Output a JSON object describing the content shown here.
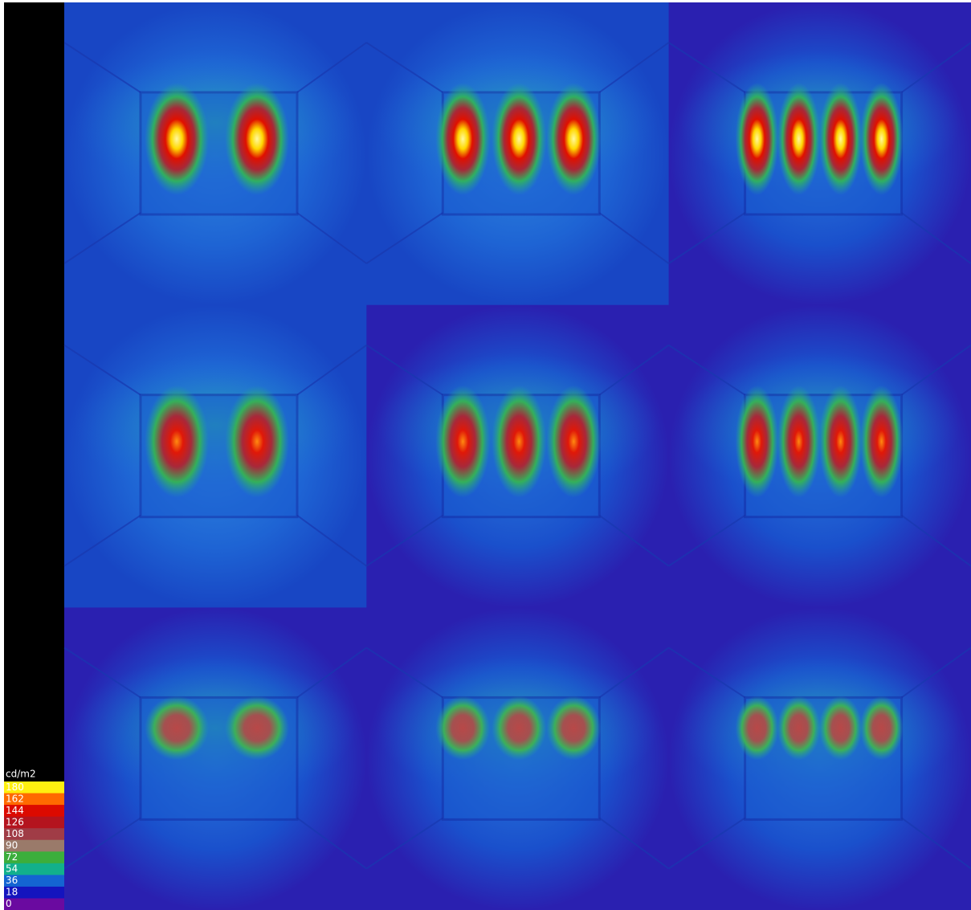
{
  "legend": {
    "unit": "cd/m2",
    "levels": [
      {
        "label": "180",
        "color": "#ffef10"
      },
      {
        "label": "162",
        "color": "#ff6a00"
      },
      {
        "label": "144",
        "color": "#dc0a00"
      },
      {
        "label": "126",
        "color": "#b4141e"
      },
      {
        "label": "108",
        "color": "#a03c46"
      },
      {
        "label": "90",
        "color": "#9a7a6a"
      },
      {
        "label": "72",
        "color": "#3cae3c"
      },
      {
        "label": "54",
        "color": "#12b08c"
      },
      {
        "label": "36",
        "color": "#1464d2"
      },
      {
        "label": "18",
        "color": "#1414be"
      },
      {
        "label": "0",
        "color": "#6a0aa0"
      }
    ]
  }
}
